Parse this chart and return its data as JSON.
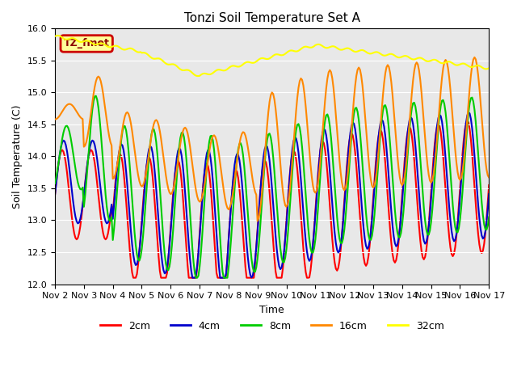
{
  "title": "Tonzi Soil Temperature Set A",
  "xlabel": "Time",
  "ylabel": "Soil Temperature (C)",
  "ylim": [
    12.0,
    16.0
  ],
  "yticks": [
    12.0,
    12.5,
    13.0,
    13.5,
    14.0,
    14.5,
    15.0,
    15.5,
    16.0
  ],
  "bg_color": "#e8e8e8",
  "fig_color": "#ffffff",
  "annotation_text": "TZ_fmet",
  "annotation_bg": "#ffff99",
  "annotation_border": "#cc0000",
  "legend_entries": [
    "2cm",
    "4cm",
    "8cm",
    "16cm",
    "32cm"
  ],
  "line_colors": [
    "#ff0000",
    "#0000cc",
    "#00cc00",
    "#ff8800",
    "#ffff00"
  ],
  "xtick_labels": [
    "Nov 2",
    "Nov 3",
    "Nov 4",
    "Nov 5",
    "Nov 6",
    "Nov 7",
    "Nov 8",
    "Nov 9",
    "Nov 10",
    "Nov 11",
    "Nov 12",
    "Nov 13",
    "Nov 14",
    "Nov 15",
    "Nov 16",
    "Nov 17"
  ]
}
